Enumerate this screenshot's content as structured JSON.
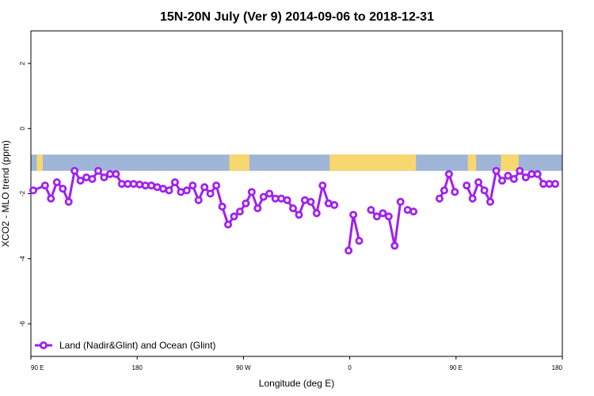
{
  "chart_data": {
    "type": "line",
    "title": "15N-20N July (Ver 9)   2014-09-06 to 2018-12-31",
    "xlabel": "Longitude (deg E)",
    "ylabel": "XCO2 - MLO trend (ppm)",
    "x_tick_labels": [
      "90 E",
      "180",
      "90 W",
      "0",
      "90 E",
      "180"
    ],
    "x_tick_values": [
      90,
      180,
      270,
      360,
      450,
      540
    ],
    "xlim": [
      90,
      540
    ],
    "y_ticks": [
      2,
      0,
      -2,
      -4,
      -6
    ],
    "ylim": [
      -7,
      3
    ],
    "grid": false,
    "legend_position": "bottom-left",
    "colors": {
      "series": "#A020F0",
      "ocean": "#9FB5D8",
      "land": "#F9D76F"
    },
    "map_strip": {
      "y_range": [
        -1.3,
        -0.8
      ],
      "land_spans": [
        [
          95,
          100
        ],
        [
          258,
          275
        ],
        [
          343,
          416
        ],
        [
          460,
          467
        ],
        [
          488,
          503
        ]
      ]
    },
    "series": [
      {
        "name": "Land (Nadir&Glint) and Ocean (Glint)",
        "segments": [
          [
            [
              92,
              -1.9
            ],
            [
              102,
              -1.75
            ],
            [
              107,
              -2.15
            ],
            [
              112,
              -1.65
            ],
            [
              117,
              -1.85
            ],
            [
              122,
              -2.25
            ],
            [
              127,
              -1.3
            ],
            [
              132,
              -1.6
            ],
            [
              137,
              -1.5
            ],
            [
              142,
              -1.55
            ],
            [
              147,
              -1.3
            ],
            [
              152,
              -1.5
            ],
            [
              157,
              -1.4
            ],
            [
              162,
              -1.4
            ],
            [
              167,
              -1.7
            ],
            [
              172,
              -1.7
            ],
            [
              177,
              -1.7
            ],
            [
              182,
              -1.72
            ],
            [
              187,
              -1.75
            ],
            [
              192,
              -1.75
            ],
            [
              197,
              -1.8
            ],
            [
              202,
              -1.85
            ],
            [
              207,
              -1.9
            ],
            [
              212,
              -1.65
            ],
            [
              217,
              -1.95
            ],
            [
              222,
              -1.9
            ],
            [
              227,
              -1.75
            ],
            [
              232,
              -2.2
            ],
            [
              237,
              -1.8
            ],
            [
              242,
              -2.0
            ],
            [
              247,
              -1.75
            ],
            [
              252,
              -2.4
            ],
            [
              257,
              -2.95
            ],
            [
              262,
              -2.7
            ],
            [
              267,
              -2.55
            ],
            [
              272,
              -2.3
            ],
            [
              277,
              -1.95
            ],
            [
              282,
              -2.45
            ],
            [
              287,
              -2.1
            ],
            [
              292,
              -2.0
            ],
            [
              297,
              -2.15
            ],
            [
              302,
              -2.15
            ],
            [
              307,
              -2.2
            ],
            [
              312,
              -2.45
            ],
            [
              317,
              -2.65
            ],
            [
              322,
              -2.2
            ],
            [
              327,
              -2.25
            ],
            [
              332,
              -2.6
            ],
            [
              337,
              -1.75
            ],
            [
              342,
              -2.3
            ],
            [
              347,
              -2.35
            ]
          ],
          [
            [
              359,
              -3.75
            ],
            [
              363,
              -2.65
            ],
            [
              368,
              -3.45
            ]
          ],
          [
            [
              378,
              -2.5
            ],
            [
              383,
              -2.7
            ],
            [
              388,
              -2.6
            ],
            [
              393,
              -2.7
            ],
            [
              398,
              -3.6
            ],
            [
              403,
              -2.25
            ]
          ],
          [
            [
              409,
              -2.5
            ],
            [
              414,
              -2.55
            ]
          ],
          [
            [
              436,
              -2.15
            ],
            [
              440,
              -1.9
            ],
            [
              444,
              -1.4
            ],
            [
              449,
              -1.95
            ]
          ],
          [
            [
              459,
              -1.75
            ],
            [
              464,
              -2.15
            ],
            [
              469,
              -1.65
            ],
            [
              474,
              -1.9
            ],
            [
              479,
              -2.25
            ],
            [
              484,
              -1.3
            ],
            [
              489,
              -1.6
            ],
            [
              494,
              -1.45
            ],
            [
              499,
              -1.55
            ],
            [
              504,
              -1.3
            ],
            [
              509,
              -1.5
            ],
            [
              514,
              -1.4
            ],
            [
              519,
              -1.4
            ],
            [
              524,
              -1.7
            ],
            [
              529,
              -1.7
            ],
            [
              534,
              -1.7
            ]
          ]
        ]
      }
    ]
  }
}
